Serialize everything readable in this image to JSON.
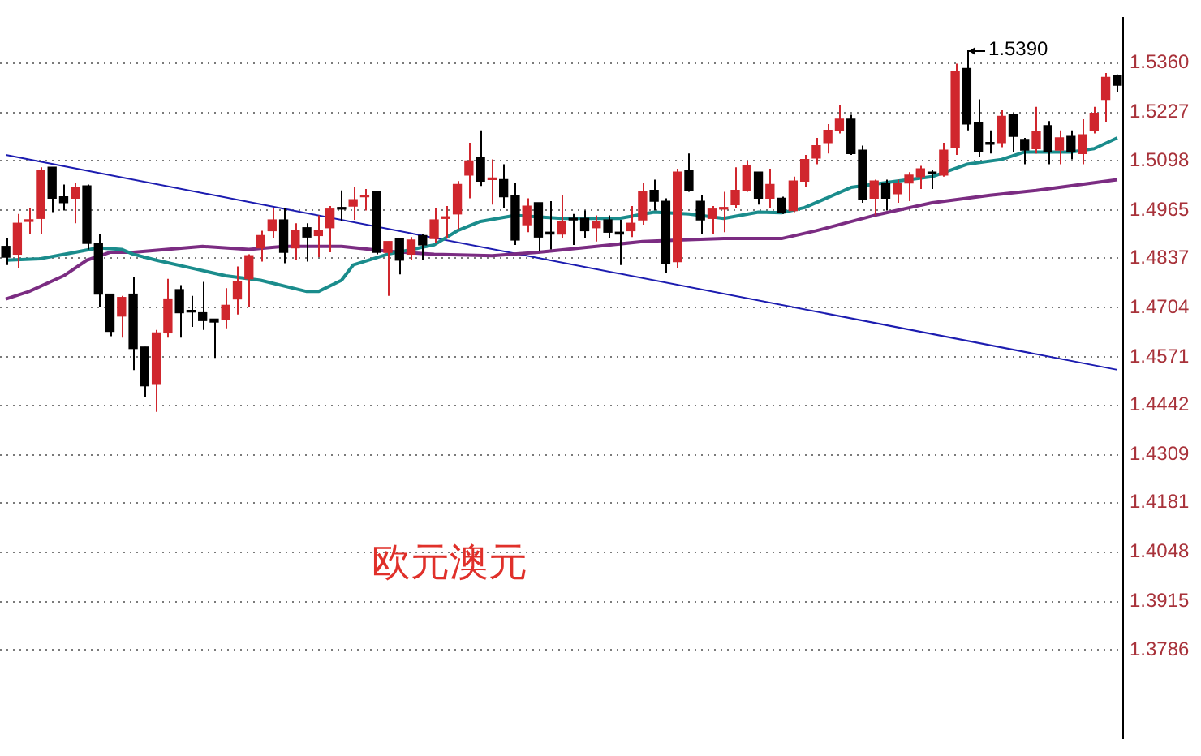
{
  "chart_data": {
    "type": "candlestick",
    "title": "欧元澳元",
    "tick_labels": "y",
    "grid": "y",
    "ylim": [
      1.355,
      1.548
    ],
    "yticks": [
      1.3786,
      1.3915,
      1.4048,
      1.4181,
      1.4309,
      1.4442,
      1.4571,
      1.4704,
      1.4837,
      1.4965,
      1.5098,
      1.5227,
      {
        "value": 1.536,
        "label": "1.5360"
      }
    ],
    "annotations": [
      "1.5390"
    ],
    "categories": [
      null,
      null,
      null,
      null,
      null,
      null,
      null,
      null,
      null,
      null,
      null,
      null,
      null,
      null,
      null,
      null,
      null,
      null,
      null,
      null,
      null,
      null,
      null,
      null,
      null,
      null,
      null,
      null,
      null,
      null,
      null,
      null,
      null,
      null,
      null,
      null,
      null,
      null,
      null,
      null,
      null,
      null,
      null,
      null,
      null,
      null,
      null,
      null,
      null,
      null,
      null,
      null,
      null,
      null,
      null,
      null,
      null,
      null,
      null,
      null,
      null,
      null,
      null,
      null,
      null,
      null,
      null,
      null,
      null,
      null,
      null,
      null,
      null,
      null,
      null,
      null,
      null,
      null,
      null,
      null,
      null,
      null,
      null,
      null,
      null,
      null,
      null,
      null,
      null,
      null,
      null,
      null,
      null,
      null,
      null,
      null,
      null
    ],
    "series": [
      {
        "colors": [
          "#000000",
          "#d0262d",
          "#d0262d",
          "#d0262d",
          "#000000",
          "#000000",
          "#d0262d",
          "#000000",
          "#000000",
          "#000000",
          "#d0262d",
          "#000000",
          "#000000",
          "#d0262d",
          "#d0262d",
          "#000000",
          "#000000",
          "#000000",
          "#000000",
          "#d0262d",
          "#d0262d",
          "#d0262d",
          "#d0262d",
          "#d0262d",
          "#000000",
          "#d0262d",
          "#000000",
          "#d0262d",
          "#d0262d",
          "#000000",
          "#d0262d",
          "#d0262d",
          "#000000",
          "#d0262d",
          "#000000",
          "#d0262d",
          "#000000",
          "#d0262d",
          "#d0262d",
          "#d0262d",
          "#d0262d",
          "#000000",
          "#d0262d",
          "#000000",
          "#000000",
          "#d0262d",
          "#000000",
          "#000000",
          "#d0262d",
          "#000000",
          "#000000",
          "#d0262d",
          "#000000",
          "#000000",
          "#d0262d",
          "#d0262d",
          "#000000",
          "#000000",
          "#d0262d",
          "#000000",
          "#000000",
          "#d0262d",
          "#d0262d",
          "#d0262d",
          "#d0262d",
          "#000000",
          "#d0262d",
          "#000000",
          "#d0262d",
          "#d0262d",
          "#d0262d",
          "#d0262d",
          "#d0262d",
          "#000000",
          "#000000",
          "#d0262d",
          "#000000",
          "#d0262d",
          "#d0262d",
          "#d0262d",
          "#000000",
          "#d0262d",
          "#d0262d",
          "#000000",
          "#000000",
          "#000000",
          "#d0262d",
          "#000000",
          "#000000",
          "#d0262d",
          "#000000",
          "#d0262d",
          "#000000",
          "#d0262d",
          "#d0262d",
          "#d0262d",
          "#000000"
        ],
        "ohlc": [
          [
            1.4868,
            1.4889,
            1.4818,
            1.4839
          ],
          [
            1.4847,
            1.4955,
            1.481,
            1.493
          ],
          [
            1.4935,
            1.4972,
            1.4901,
            1.4939
          ],
          [
            1.4943,
            1.508,
            1.4901,
            1.5072
          ],
          [
            1.508,
            1.508,
            1.496,
            1.4997
          ],
          [
            1.5001,
            1.5034,
            1.4964,
            1.4985
          ],
          [
            1.4997,
            1.5038,
            1.493,
            1.5026
          ],
          [
            1.503,
            1.5034,
            1.486,
            1.4876
          ],
          [
            1.4876,
            1.4901,
            1.4706,
            1.474
          ],
          [
            1.474,
            1.474,
            1.4627,
            1.464
          ],
          [
            1.4681,
            1.4735,
            1.4623,
            1.4731
          ],
          [
            1.474,
            1.4785,
            1.4536,
            1.4594
          ],
          [
            1.4598,
            1.4598,
            1.4465,
            1.4494
          ],
          [
            1.4498,
            1.4644,
            1.4424,
            1.4636
          ],
          [
            1.4636,
            1.4781,
            1.4623,
            1.4727
          ],
          [
            1.4752,
            1.4764,
            1.4623,
            1.469
          ],
          [
            1.4696,
            1.4735,
            1.4652,
            1.4692
          ],
          [
            1.469,
            1.4773,
            1.4644,
            1.4669
          ],
          [
            1.4673,
            1.4673,
            1.4569,
            1.4665
          ],
          [
            1.4673,
            1.4756,
            1.4648,
            1.471
          ],
          [
            1.4727,
            1.4814,
            1.4685,
            1.4773
          ],
          [
            1.4781,
            1.4847,
            1.4706,
            1.4843
          ],
          [
            1.4864,
            1.491,
            1.4827,
            1.4897
          ],
          [
            1.491,
            1.4972,
            1.4889,
            1.4939
          ],
          [
            1.4939,
            1.4972,
            1.4823,
            1.4852
          ],
          [
            1.4864,
            1.493,
            1.4831,
            1.491
          ],
          [
            1.4918,
            1.493,
            1.4827,
            1.4893
          ],
          [
            1.4897,
            1.4951,
            1.4839,
            1.491
          ],
          [
            1.4918,
            1.4976,
            1.4852,
            1.4968
          ],
          [
            1.4972,
            1.5018,
            1.4935,
            1.4968
          ],
          [
            1.4976,
            1.5026,
            1.4939,
            1.4993
          ],
          [
            1.5001,
            1.5022,
            1.4964,
            1.5005
          ],
          [
            1.5014,
            1.5014,
            1.4847,
            1.4852
          ],
          [
            1.4852,
            1.4881,
            1.4735,
            1.4881
          ],
          [
            1.4889,
            1.4889,
            1.4793,
            1.4831
          ],
          [
            1.4847,
            1.4893,
            1.4831,
            1.4885
          ],
          [
            1.4897,
            1.4901,
            1.4831,
            1.4872
          ],
          [
            1.4889,
            1.4972,
            1.4876,
            1.4939
          ],
          [
            1.4943,
            1.4976,
            1.4889,
            1.4947
          ],
          [
            1.4955,
            1.5043,
            1.4914,
            1.5034
          ],
          [
            1.5059,
            1.5146,
            1.4997,
            1.5097
          ],
          [
            1.5105,
            1.5179,
            1.503,
            1.5043
          ],
          [
            1.5047,
            1.5101,
            1.498,
            1.5051
          ],
          [
            1.5047,
            1.5088,
            1.4972,
            1.5001
          ],
          [
            1.5005,
            1.5038,
            1.4872,
            1.4885
          ],
          [
            1.4926,
            1.4997,
            1.4906,
            1.4976
          ],
          [
            1.4985,
            1.4985,
            1.4856,
            1.4893
          ],
          [
            1.4906,
            1.4989,
            1.486,
            1.4901
          ],
          [
            1.4901,
            1.5005,
            1.4889,
            1.4935
          ],
          [
            1.4943,
            1.4955,
            1.4872,
            1.4939
          ],
          [
            1.4943,
            1.4964,
            1.4889,
            1.491
          ],
          [
            1.4918,
            1.4951,
            1.4881,
            1.4935
          ],
          [
            1.4939,
            1.4951,
            1.4889,
            1.4906
          ],
          [
            1.4906,
            1.4939,
            1.4818,
            1.4901
          ],
          [
            1.491,
            1.4976,
            1.4893,
            1.493
          ],
          [
            1.4939,
            1.5038,
            1.4926,
            1.5014
          ],
          [
            1.5018,
            1.5047,
            1.4964,
            1.4989
          ],
          [
            1.4989,
            1.4997,
            1.4798,
            1.4823
          ],
          [
            1.4827,
            1.5076,
            1.481,
            1.5067
          ],
          [
            1.5072,
            1.5117,
            1.5014,
            1.5018
          ],
          [
            1.4989,
            1.5005,
            1.4901,
            1.4939
          ],
          [
            1.4943,
            1.4976,
            1.4901,
            1.4968
          ],
          [
            1.4968,
            1.5014,
            1.4906,
            1.4972
          ],
          [
            1.498,
            1.508,
            1.4972,
            1.5018
          ],
          [
            1.5018,
            1.5097,
            1.5014,
            1.5084
          ],
          [
            1.5067,
            1.5067,
            1.498,
            1.4997
          ],
          [
            1.4997,
            1.5076,
            1.4972,
            1.5034
          ],
          [
            1.4997,
            1.5001,
            1.4955,
            1.496
          ],
          [
            1.4964,
            1.5055,
            1.496,
            1.5043
          ],
          [
            1.5043,
            1.5113,
            1.5026,
            1.5101
          ],
          [
            1.5105,
            1.5159,
            1.5088,
            1.5138
          ],
          [
            1.5146,
            1.5196,
            1.5117,
            1.5179
          ],
          [
            1.5179,
            1.5246,
            1.5171,
            1.5209
          ],
          [
            1.5209,
            1.5221,
            1.5113,
            1.5117
          ],
          [
            1.5126,
            1.5138,
            1.4985,
            1.4993
          ],
          [
            1.4997,
            1.5047,
            1.4951,
            1.5043
          ],
          [
            1.5038,
            1.5047,
            1.4964,
            1.4997
          ],
          [
            1.5009,
            1.5047,
            1.4985,
            1.5038
          ],
          [
            1.5038,
            1.5067,
            1.4989,
            1.5059
          ],
          [
            1.5055,
            1.5084,
            1.5022,
            1.5076
          ],
          [
            1.5067,
            1.5072,
            1.5022,
            1.5063
          ],
          [
            1.5059,
            1.5146,
            1.5055,
            1.5126
          ],
          [
            1.5134,
            1.5358,
            1.5113,
            1.5337
          ],
          [
            1.5345,
            1.539,
            1.5179,
            1.5196
          ],
          [
            1.52,
            1.5262,
            1.5109,
            1.5121
          ],
          [
            1.5146,
            1.5179,
            1.5117,
            1.5142
          ],
          [
            1.5146,
            1.5233,
            1.5134,
            1.5217
          ],
          [
            1.5221,
            1.5225,
            1.5121,
            1.5163
          ],
          [
            1.5155,
            1.5159,
            1.5088,
            1.5126
          ],
          [
            1.513,
            1.5242,
            1.5117,
            1.5175
          ],
          [
            1.5192,
            1.5204,
            1.5088,
            1.5121
          ],
          [
            1.5126,
            1.5179,
            1.5088,
            1.5159
          ],
          [
            1.5163,
            1.5179,
            1.5101,
            1.5121
          ],
          [
            1.5117,
            1.5209,
            1.5088,
            1.5167
          ],
          [
            1.5179,
            1.5242,
            1.5171,
            1.5225
          ],
          [
            1.5262,
            1.5333,
            1.52,
            1.5321
          ],
          [
            1.5325,
            1.5329,
            1.5283,
            1.53
          ]
        ]
      },
      {
        "type": "line",
        "color": "#1a8c8c",
        "values": [
          1.4831,
          null,
          null,
          1.4835,
          null,
          null,
          1.4852,
          null,
          1.4864,
          null,
          1.486,
          1.4847,
          null,
          1.4831,
          null,
          null,
          1.481,
          null,
          null,
          1.4789,
          null,
          null,
          1.4777,
          null,
          null,
          null,
          1.4747,
          1.4747,
          null,
          1.4777,
          1.4818,
          null,
          null,
          1.4847,
          null,
          null,
          null,
          1.4872,
          null,
          1.491,
          null,
          1.4935,
          null,
          null,
          1.4951,
          null,
          null,
          null,
          1.4943,
          null,
          null,
          null,
          null,
          1.4943,
          null,
          null,
          1.496,
          null,
          null,
          1.4955,
          null,
          null,
          1.4943,
          null,
          null,
          1.496,
          null,
          1.4958,
          null,
          1.4972,
          null,
          null,
          null,
          1.5026,
          null,
          null,
          null,
          1.5043,
          null,
          null,
          1.5055,
          null,
          null,
          1.5088,
          null,
          null,
          1.5101,
          null,
          1.5121,
          null,
          null,
          null,
          1.5121,
          null,
          1.513,
          null,
          1.5159
        ]
      },
      {
        "type": "line",
        "color": "#7b2c82",
        "values": [
          1.4727,
          null,
          1.4747,
          null,
          null,
          1.4789,
          null,
          1.4831,
          null,
          1.4852,
          null,
          1.4852,
          null,
          null,
          null,
          null,
          null,
          1.4868,
          null,
          null,
          null,
          1.486,
          null,
          null,
          1.4868,
          null,
          null,
          null,
          null,
          1.4868,
          null,
          null,
          null,
          1.4855,
          null,
          null,
          null,
          1.4847,
          null,
          null,
          null,
          null,
          1.4843,
          null,
          null,
          null,
          1.4852,
          null,
          null,
          null,
          null,
          1.4868,
          null,
          null,
          null,
          1.4881,
          null,
          null,
          1.4885,
          null,
          null,
          null,
          1.4889,
          null,
          null,
          null,
          null,
          1.4889,
          null,
          null,
          1.491,
          null,
          null,
          null,
          null,
          1.4951,
          null,
          null,
          null,
          null,
          1.4985,
          null,
          null,
          null,
          null,
          1.5005,
          null,
          null,
          null,
          1.5018,
          null,
          null,
          null,
          null,
          null,
          null,
          1.5047
        ]
      },
      {
        "type": "line",
        "color": "#1c1cb0",
        "values": [
          1.5113,
          null,
          null,
          null,
          null,
          null,
          null,
          null,
          null,
          null,
          null,
          null,
          null,
          null,
          null,
          null,
          null,
          null,
          null,
          null,
          null,
          null,
          null,
          null,
          null,
          null,
          null,
          null,
          null,
          null,
          null,
          null,
          null,
          null,
          null,
          null,
          null,
          null,
          null,
          null,
          null,
          null,
          null,
          null,
          null,
          null,
          null,
          null,
          null,
          null,
          null,
          null,
          null,
          null,
          null,
          null,
          null,
          null,
          null,
          null,
          null,
          null,
          null,
          null,
          null,
          null,
          null,
          null,
          null,
          null,
          null,
          null,
          null,
          null,
          null,
          null,
          null,
          null,
          null,
          null,
          null,
          null,
          null,
          null,
          null,
          null,
          null,
          null,
          null,
          null,
          null,
          null,
          null,
          null,
          null,
          null,
          1.4537
        ]
      }
    ]
  }
}
